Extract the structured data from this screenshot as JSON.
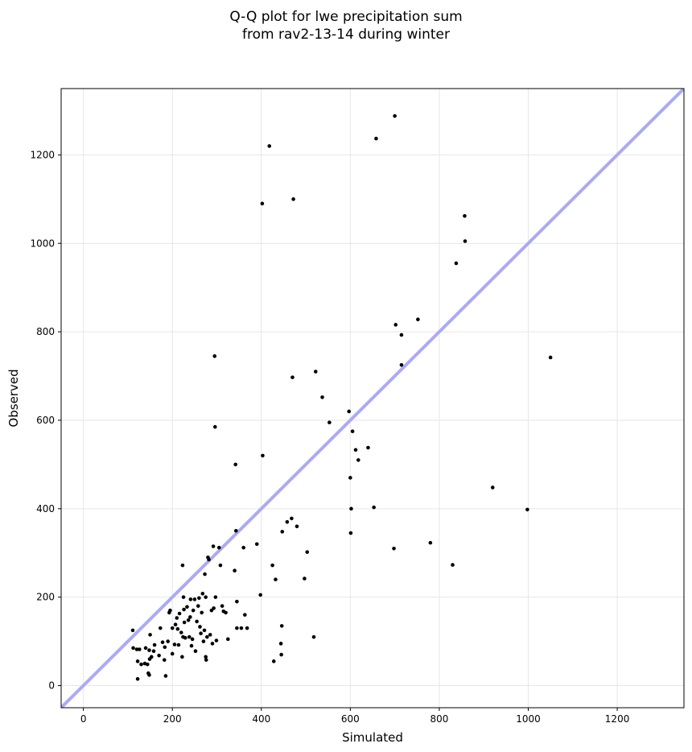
{
  "chart_data": {
    "type": "scatter",
    "title": [
      "Q-Q plot for lwe precipitation sum",
      "from rav2-13-14 during winter"
    ],
    "xlabel": "Simulated",
    "ylabel": "Observed",
    "xlim": [
      -50,
      1350
    ],
    "ylim": [
      -50,
      1350
    ],
    "xticks": [
      0,
      200,
      400,
      600,
      800,
      1000,
      1200
    ],
    "yticks": [
      0,
      200,
      400,
      600,
      800,
      1000,
      1200
    ],
    "grid": true,
    "reference_line": {
      "x": [
        -50,
        1350
      ],
      "y": [
        -50,
        1350
      ],
      "color": "#aaaaf5"
    },
    "point_color": "#000000",
    "points": [
      [
        111,
        125
      ],
      [
        112,
        85
      ],
      [
        120,
        82
      ],
      [
        122,
        15
      ],
      [
        122,
        55
      ],
      [
        126,
        82
      ],
      [
        130,
        48
      ],
      [
        138,
        50
      ],
      [
        140,
        85
      ],
      [
        144,
        48
      ],
      [
        146,
        28
      ],
      [
        148,
        24
      ],
      [
        148,
        80
      ],
      [
        149,
        60
      ],
      [
        150,
        115
      ],
      [
        153,
        65
      ],
      [
        158,
        78
      ],
      [
        160,
        92
      ],
      [
        170,
        68
      ],
      [
        173,
        130
      ],
      [
        178,
        98
      ],
      [
        182,
        58
      ],
      [
        183,
        87
      ],
      [
        185,
        22
      ],
      [
        190,
        100
      ],
      [
        193,
        165
      ],
      [
        195,
        170
      ],
      [
        200,
        72
      ],
      [
        200,
        130
      ],
      [
        205,
        93
      ],
      [
        207,
        138
      ],
      [
        210,
        153
      ],
      [
        212,
        128
      ],
      [
        214,
        92
      ],
      [
        216,
        163
      ],
      [
        220,
        120
      ],
      [
        222,
        65
      ],
      [
        223,
        272
      ],
      [
        224,
        110
      ],
      [
        225,
        200
      ],
      [
        226,
        172
      ],
      [
        227,
        143
      ],
      [
        229,
        108
      ],
      [
        233,
        178
      ],
      [
        236,
        148
      ],
      [
        238,
        110
      ],
      [
        240,
        155
      ],
      [
        241,
        195
      ],
      [
        243,
        90
      ],
      [
        245,
        105
      ],
      [
        247,
        170
      ],
      [
        250,
        195
      ],
      [
        252,
        78
      ],
      [
        255,
        145
      ],
      [
        258,
        180
      ],
      [
        260,
        198
      ],
      [
        262,
        133
      ],
      [
        264,
        118
      ],
      [
        266,
        165
      ],
      [
        268,
        208
      ],
      [
        270,
        100
      ],
      [
        272,
        125
      ],
      [
        273,
        252
      ],
      [
        275,
        65
      ],
      [
        275,
        200
      ],
      [
        276,
        58
      ],
      [
        278,
        110
      ],
      [
        280,
        290
      ],
      [
        282,
        285
      ],
      [
        285,
        115
      ],
      [
        288,
        170
      ],
      [
        290,
        95
      ],
      [
        292,
        315
      ],
      [
        293,
        175
      ],
      [
        295,
        745
      ],
      [
        296,
        585
      ],
      [
        297,
        200
      ],
      [
        299,
        102
      ],
      [
        305,
        312
      ],
      [
        308,
        272
      ],
      [
        312,
        180
      ],
      [
        315,
        168
      ],
      [
        320,
        165
      ],
      [
        325,
        105
      ],
      [
        340,
        260
      ],
      [
        342,
        500
      ],
      [
        343,
        350
      ],
      [
        345,
        190
      ],
      [
        345,
        130
      ],
      [
        355,
        130
      ],
      [
        360,
        312
      ],
      [
        363,
        160
      ],
      [
        368,
        130
      ],
      [
        390,
        320
      ],
      [
        398,
        205
      ],
      [
        402,
        1090
      ],
      [
        403,
        520
      ],
      [
        418,
        1220
      ],
      [
        425,
        272
      ],
      [
        428,
        55
      ],
      [
        432,
        240
      ],
      [
        444,
        95
      ],
      [
        445,
        70
      ],
      [
        446,
        135
      ],
      [
        447,
        348
      ],
      [
        458,
        370
      ],
      [
        468,
        378
      ],
      [
        472,
        1100
      ],
      [
        470,
        697
      ],
      [
        480,
        360
      ],
      [
        497,
        242
      ],
      [
        503,
        302
      ],
      [
        518,
        110
      ],
      [
        522,
        710
      ],
      [
        537,
        652
      ],
      [
        553,
        595
      ],
      [
        597,
        620
      ],
      [
        600,
        470
      ],
      [
        601,
        345
      ],
      [
        602,
        400
      ],
      [
        605,
        575
      ],
      [
        612,
        533
      ],
      [
        618,
        510
      ],
      [
        640,
        538
      ],
      [
        653,
        403
      ],
      [
        658,
        1237
      ],
      [
        698,
        310
      ],
      [
        700,
        1288
      ],
      [
        702,
        816
      ],
      [
        715,
        793
      ],
      [
        715,
        725
      ],
      [
        752,
        828
      ],
      [
        780,
        323
      ],
      [
        830,
        273
      ],
      [
        838,
        955
      ],
      [
        857,
        1062
      ],
      [
        858,
        1005
      ],
      [
        920,
        448
      ],
      [
        998,
        398
      ],
      [
        1050,
        742
      ]
    ]
  }
}
